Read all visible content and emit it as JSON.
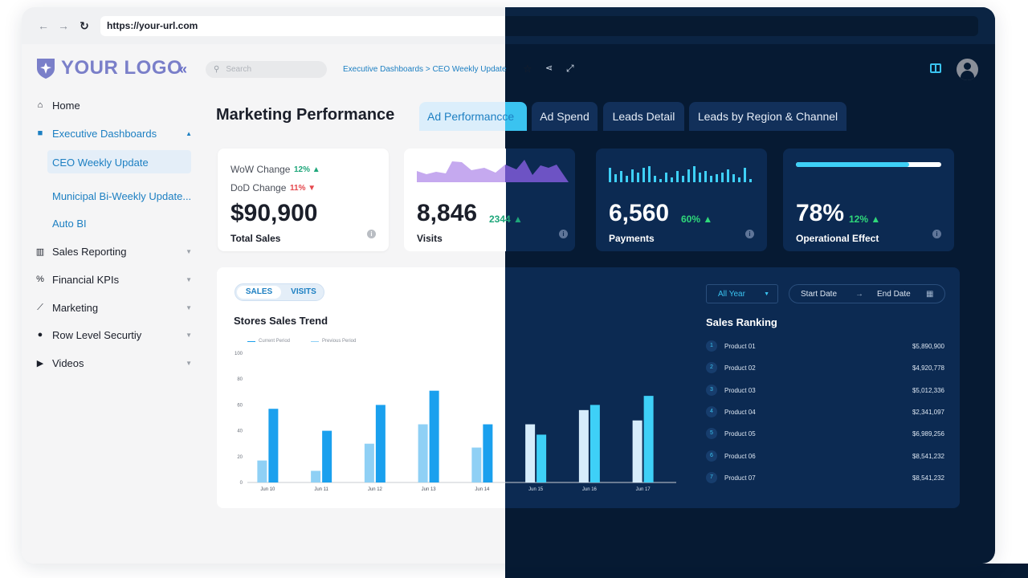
{
  "browser": {
    "url": "https://your-url.com"
  },
  "sidebar": {
    "logo_text": "YOUR LOGO",
    "items": [
      {
        "label": "Home",
        "icon": "home-icon"
      },
      {
        "label": "Executive Dashboards",
        "icon": "briefcase-icon"
      },
      {
        "label": "Sales Reporting",
        "icon": "bar-chart-icon"
      },
      {
        "label": "Financial KPIs",
        "icon": "percent-icon"
      },
      {
        "label": "Marketing",
        "icon": "line-chart-icon"
      },
      {
        "label": "Row Level Securtiy",
        "icon": "user-check-icon"
      },
      {
        "label": "Videos",
        "icon": "play-circle-icon"
      }
    ],
    "sub_items": [
      {
        "label": "CEO Weekly Update"
      },
      {
        "label": "Municipal Bi-Weekly Update..."
      },
      {
        "label": "Auto BI"
      }
    ]
  },
  "topbar": {
    "search_placeholder": "Search",
    "breadcrumb": "Executive Dashboards > CEO Weekly Update"
  },
  "page": {
    "title": "Marketing Performance",
    "tabs": [
      "Ad Performancce",
      "Ad Spend",
      "Leads Detail",
      "Leads by Region & Channel"
    ]
  },
  "kpis": {
    "sales": {
      "wow_label": "WoW Change",
      "wow_value": "12%",
      "dod_label": "DoD Change",
      "dod_value": "11%",
      "value": "$90,900",
      "label": "Total Sales"
    },
    "visits": {
      "value": "8,846",
      "change": "2344",
      "label": "Visits"
    },
    "payments": {
      "value": "6,560",
      "change": "60%",
      "label": "Payments"
    },
    "operational": {
      "value": "78%",
      "change": "12%",
      "label": "Operational Effect",
      "progress": 0.78
    }
  },
  "sales_panel": {
    "toggle": [
      "SALES",
      "VISITS"
    ],
    "title": "Stores Sales Trend",
    "legend": [
      "Current Period",
      "Previous Period"
    ]
  },
  "chart_data": {
    "type": "bar",
    "title": "Stores Sales Trend",
    "categories": [
      "Jun 10",
      "Jun 11",
      "Jun 12",
      "Jun 13",
      "Jun 14",
      "Jun 15",
      "Jun 16",
      "Jun 17"
    ],
    "series": [
      {
        "name": "Previous Period",
        "values": [
          17,
          9,
          30,
          45,
          27,
          45,
          56,
          48
        ]
      },
      {
        "name": "Current Period",
        "values": [
          57,
          40,
          60,
          71,
          45,
          37,
          60,
          67
        ]
      }
    ],
    "yticks": [
      "0",
      "20",
      "40",
      "60",
      "80",
      "100"
    ],
    "ylim": [
      0,
      100
    ],
    "colors": {
      "previous_light": "#8fd0f5",
      "current_light": "#1aa0ee",
      "previous_dark": "#d6ecfb",
      "current_dark": "#3ed0f7"
    }
  },
  "ranking": {
    "filter": "All Year",
    "start_date": "Start Date",
    "end_date": "End Date",
    "title": "Sales Ranking",
    "rows": [
      {
        "rank": "1",
        "name": "Product 01",
        "value": "$5,890,900"
      },
      {
        "rank": "2",
        "name": "Product 02",
        "value": "$4,920,778"
      },
      {
        "rank": "3",
        "name": "Product 03",
        "value": "$5,012,336"
      },
      {
        "rank": "4",
        "name": "Product 04",
        "value": "$2,341,097"
      },
      {
        "rank": "5",
        "name": "Product 05",
        "value": "$6,989,256"
      },
      {
        "rank": "6",
        "name": "Product 06",
        "value": "$8,541,232"
      },
      {
        "rank": "7",
        "name": "Product 07",
        "value": "$8,541,232"
      }
    ]
  },
  "theme": {
    "accent_light": "#1c7fc2",
    "accent_dark": "#3ac3f0",
    "dark_bg": "#061a33",
    "dark_card": "#0c2a52",
    "positive": "#1ea67a",
    "negative": "#e5484d"
  }
}
